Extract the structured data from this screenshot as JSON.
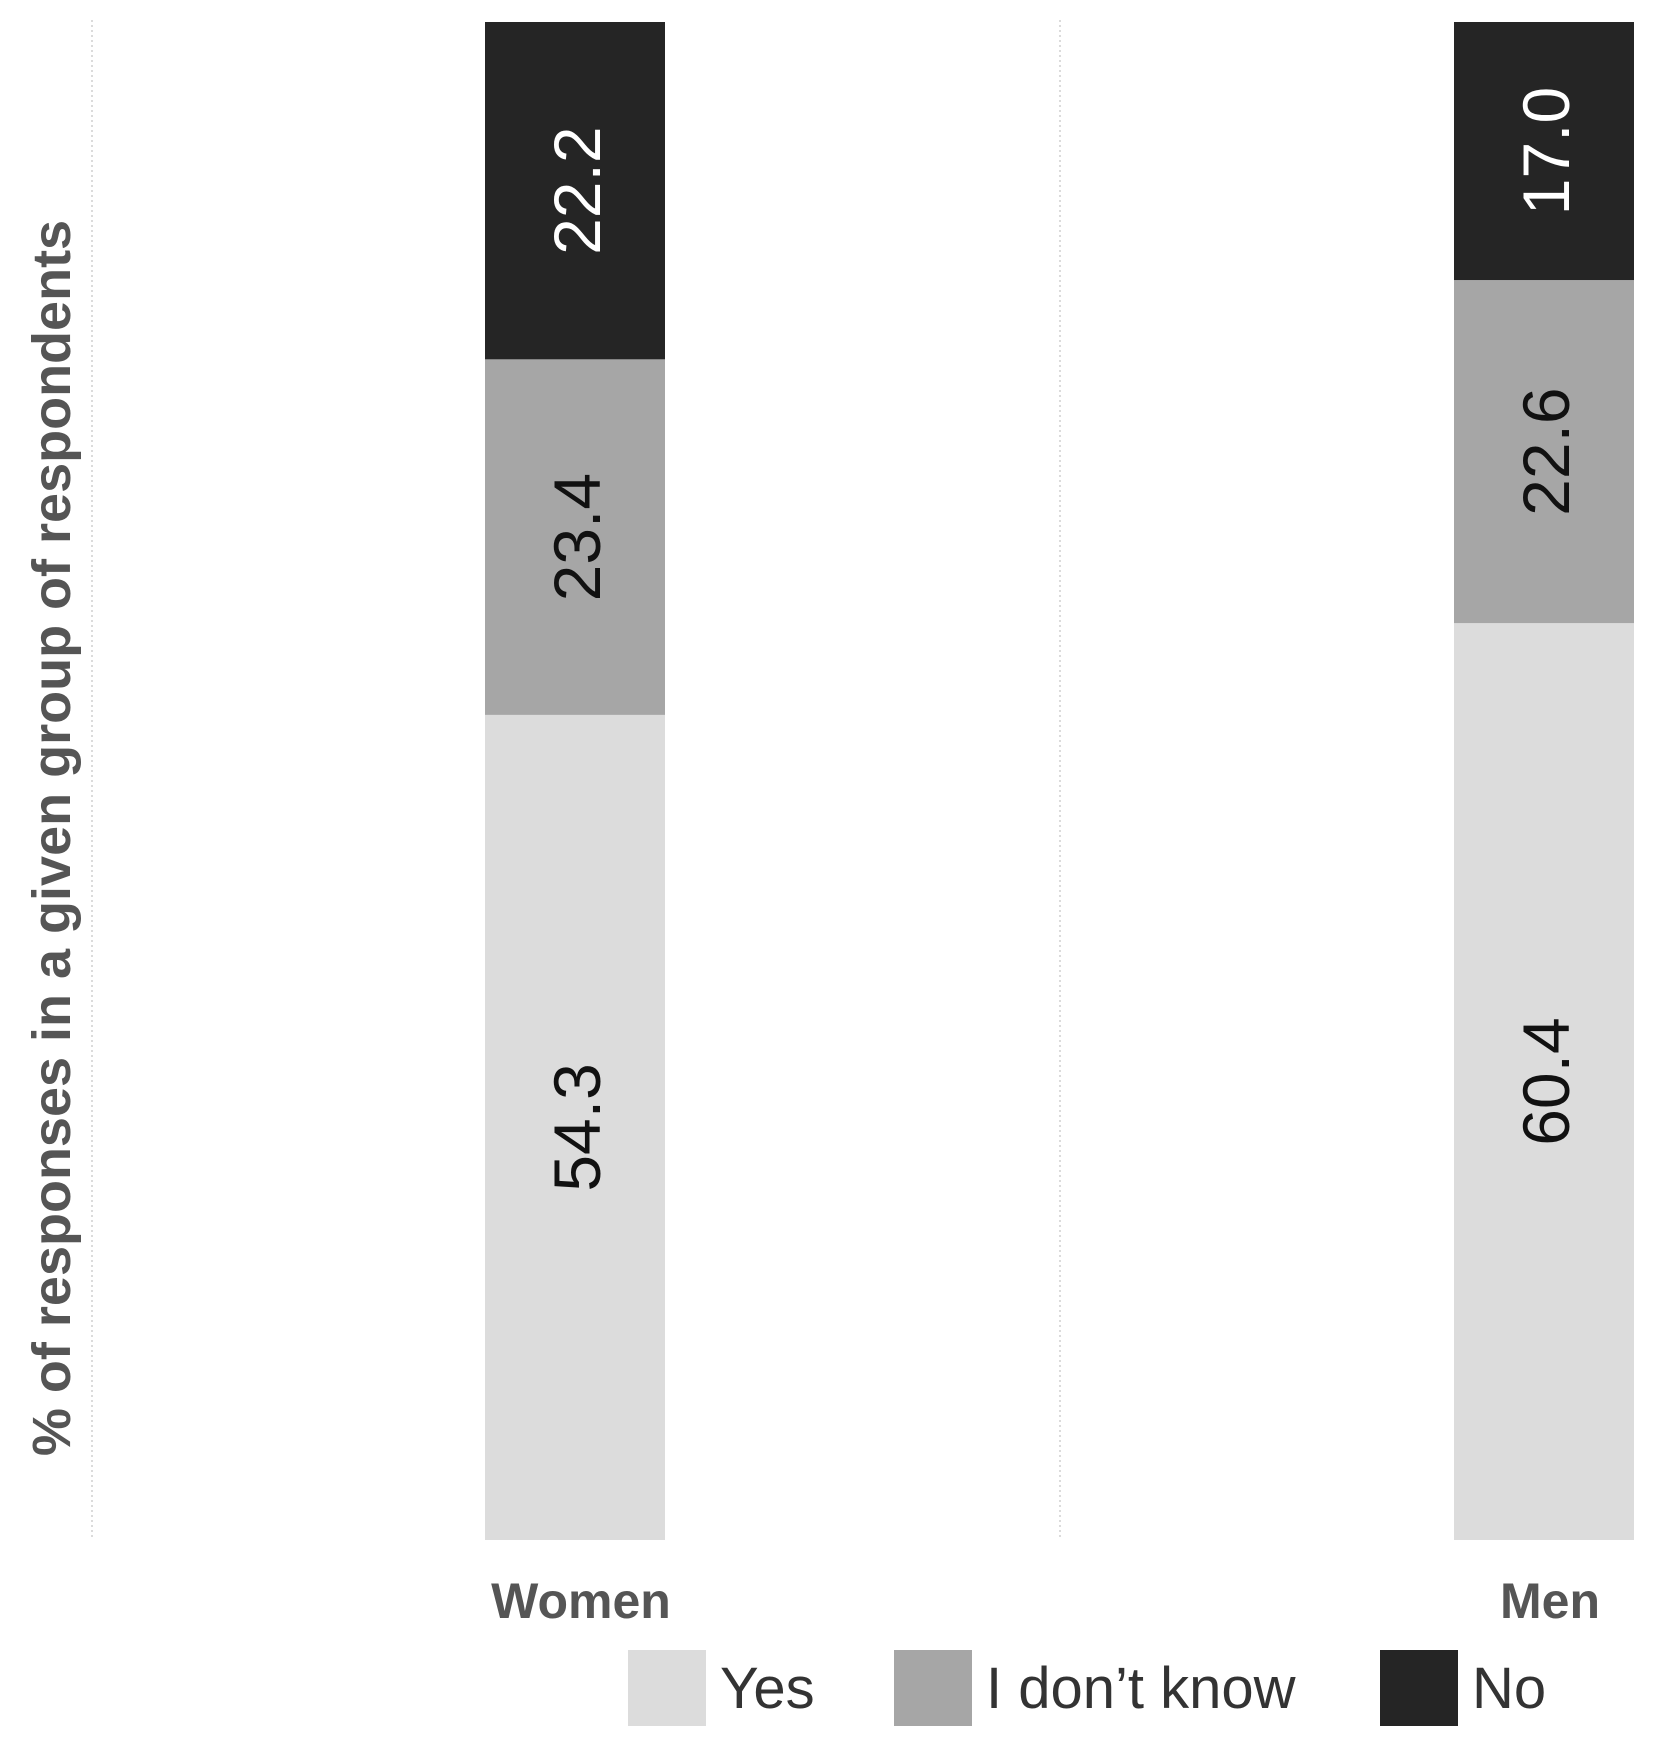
{
  "chart_data": {
    "type": "bar",
    "stacked": true,
    "orientation": "vertical",
    "title": "",
    "xlabel": "",
    "ylabel": "% of responses in a given group of respondents",
    "ylim": [
      0,
      100
    ],
    "grid": "vertical dotted separators",
    "legend_position": "bottom",
    "categories": [
      "Women",
      "Men"
    ],
    "series": [
      {
        "name": "Yes",
        "color": "#dcdcdc",
        "label_color": "#111111",
        "values": [
          54.3,
          60.4
        ],
        "labels": [
          "54.3",
          "60.4"
        ]
      },
      {
        "name": "I don’t know",
        "color": "#a6a6a6",
        "label_color": "#111111",
        "values": [
          23.4,
          22.6
        ],
        "labels": [
          "23.4",
          "22.6"
        ]
      },
      {
        "name": "No",
        "color": "#252525",
        "label_color": "#ffffff",
        "values": [
          22.2,
          17.0
        ],
        "labels": [
          "22.2",
          "17.0"
        ]
      }
    ]
  }
}
